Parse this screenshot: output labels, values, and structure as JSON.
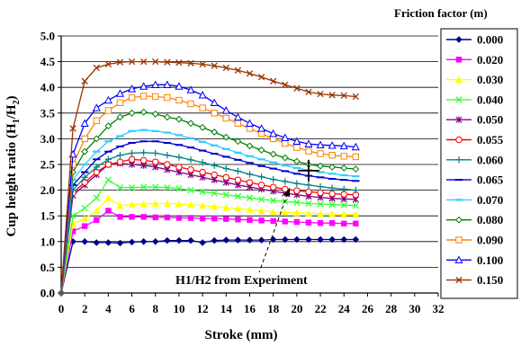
{
  "chart_data": {
    "type": "line",
    "xlabel": "Stroke (mm)",
    "ylabel": "Cup height ratio (H",
    "ylabel_sub1": "1",
    "ylabel_mid": "/H",
    "ylabel_sub2": "2",
    "ylabel_end": ")",
    "xlim": [
      0,
      32
    ],
    "ylim": [
      0,
      5
    ],
    "xticks": [
      "0",
      "2",
      "4",
      "6",
      "8",
      "10",
      "12",
      "14",
      "16",
      "18",
      "20",
      "22",
      "24",
      "26",
      "28",
      "30",
      "32"
    ],
    "yticks": [
      "0.0",
      "0.5",
      "1.0",
      "1.5",
      "2.0",
      "2.5",
      "3.0",
      "3.5",
      "4.0",
      "4.5",
      "5.0"
    ],
    "legend_title": "Friction factor (m)",
    "legend_position": "right",
    "grid": "horizontal",
    "annotation": {
      "text": "H1/H2 from Experiment",
      "point": [
        21,
        2.38
      ]
    },
    "series": [
      {
        "name": "0.000",
        "color": "#00008B",
        "marker": "diamond-filled",
        "x": [
          0,
          1,
          2,
          3,
          4,
          5,
          6,
          7,
          8,
          9,
          10,
          11,
          12,
          13,
          14,
          15,
          16,
          17,
          18,
          19,
          20,
          21,
          22,
          23,
          24,
          25
        ],
        "y": [
          0,
          1.0,
          1.0,
          0.98,
          0.98,
          0.97,
          0.99,
          1.0,
          1.0,
          1.02,
          1.02,
          1.02,
          0.98,
          1.02,
          1.03,
          1.03,
          1.03,
          1.03,
          1.04,
          1.04,
          1.04,
          1.04,
          1.04,
          1.04,
          1.04,
          1.04
        ]
      },
      {
        "name": "0.020",
        "color": "#FF00FF",
        "marker": "square-filled",
        "x": [
          0,
          1,
          2,
          3,
          4,
          5,
          6,
          7,
          8,
          9,
          10,
          11,
          12,
          13,
          14,
          15,
          16,
          17,
          18,
          19,
          20,
          21,
          22,
          23,
          24,
          25
        ],
        "y": [
          0,
          1.2,
          1.3,
          1.42,
          1.6,
          1.48,
          1.48,
          1.48,
          1.47,
          1.47,
          1.46,
          1.46,
          1.45,
          1.45,
          1.44,
          1.43,
          1.42,
          1.41,
          1.4,
          1.39,
          1.38,
          1.37,
          1.36,
          1.36,
          1.35,
          1.35
        ]
      },
      {
        "name": "0.030",
        "color": "#FFFF00",
        "marker": "triangle-filled",
        "x": [
          0,
          1,
          2,
          3,
          4,
          5,
          6,
          7,
          8,
          9,
          10,
          11,
          12,
          13,
          14,
          15,
          16,
          17,
          18,
          19,
          20,
          21,
          22,
          23,
          24,
          25
        ],
        "y": [
          0,
          1.35,
          1.45,
          1.6,
          1.85,
          1.7,
          1.72,
          1.73,
          1.74,
          1.74,
          1.73,
          1.72,
          1.7,
          1.68,
          1.66,
          1.64,
          1.62,
          1.6,
          1.58,
          1.57,
          1.56,
          1.55,
          1.54,
          1.54,
          1.53,
          1.53
        ]
      },
      {
        "name": "0.040",
        "color": "#33FF33",
        "marker": "x",
        "x": [
          0,
          1,
          2,
          3,
          4,
          5,
          6,
          7,
          8,
          9,
          10,
          11,
          12,
          13,
          14,
          15,
          16,
          17,
          18,
          19,
          20,
          21,
          22,
          23,
          24,
          25
        ],
        "y": [
          0,
          1.5,
          1.65,
          1.85,
          2.2,
          2.05,
          2.05,
          2.06,
          2.06,
          2.05,
          2.03,
          2.0,
          1.97,
          1.94,
          1.91,
          1.88,
          1.85,
          1.82,
          1.8,
          1.78,
          1.76,
          1.74,
          1.73,
          1.72,
          1.71,
          1.7
        ]
      },
      {
        "name": "0.050",
        "color": "#800080",
        "marker": "asterisk",
        "x": [
          0,
          1,
          2,
          3,
          4,
          5,
          6,
          7,
          8,
          9,
          10,
          11,
          12,
          13,
          14,
          15,
          16,
          17,
          18,
          19,
          20,
          21,
          22,
          23,
          24,
          25
        ],
        "y": [
          0,
          1.9,
          2.1,
          2.3,
          2.5,
          2.52,
          2.5,
          2.48,
          2.45,
          2.4,
          2.35,
          2.3,
          2.25,
          2.2,
          2.15,
          2.1,
          2.06,
          2.02,
          1.98,
          1.94,
          1.91,
          1.88,
          1.86,
          1.84,
          1.83,
          1.82
        ]
      },
      {
        "name": "0.055",
        "color": "#FF0000",
        "marker": "circle-open",
        "x": [
          0,
          1,
          2,
          3,
          4,
          5,
          6,
          7,
          8,
          9,
          10,
          11,
          12,
          13,
          14,
          15,
          16,
          17,
          18,
          19,
          20,
          21,
          22,
          23,
          24,
          25
        ],
        "y": [
          0,
          1.95,
          2.15,
          2.35,
          2.5,
          2.55,
          2.6,
          2.58,
          2.55,
          2.5,
          2.45,
          2.4,
          2.35,
          2.3,
          2.25,
          2.2,
          2.15,
          2.1,
          2.06,
          2.02,
          1.99,
          1.97,
          1.95,
          1.93,
          1.92,
          1.91
        ]
      },
      {
        "name": "0.060",
        "color": "#008080",
        "marker": "plus",
        "x": [
          0,
          1,
          2,
          3,
          4,
          5,
          6,
          7,
          8,
          9,
          10,
          11,
          12,
          13,
          14,
          15,
          16,
          17,
          18,
          19,
          20,
          21,
          22,
          23,
          24,
          25
        ],
        "y": [
          0,
          2.0,
          2.25,
          2.45,
          2.6,
          2.68,
          2.72,
          2.73,
          2.72,
          2.68,
          2.64,
          2.59,
          2.54,
          2.48,
          2.42,
          2.37,
          2.31,
          2.26,
          2.21,
          2.17,
          2.13,
          2.1,
          2.07,
          2.04,
          2.02,
          2.0
        ]
      },
      {
        "name": "0.065",
        "color": "#0000CC",
        "marker": "dash",
        "x": [
          0,
          1,
          2,
          3,
          4,
          5,
          6,
          7,
          8,
          9,
          10,
          11,
          12,
          13,
          14,
          15,
          16,
          17,
          18,
          19,
          20,
          21,
          22,
          23,
          24,
          25
        ],
        "y": [
          0,
          2.1,
          2.35,
          2.6,
          2.75,
          2.85,
          2.92,
          2.95,
          2.95,
          2.92,
          2.88,
          2.83,
          2.77,
          2.71,
          2.65,
          2.59,
          2.53,
          2.47,
          2.42,
          2.37,
          2.32,
          2.28,
          2.25,
          2.22,
          2.2,
          2.18
        ]
      },
      {
        "name": "0.070",
        "color": "#33CCFF",
        "marker": "bar",
        "x": [
          0,
          1,
          2,
          3,
          4,
          5,
          6,
          7,
          8,
          9,
          10,
          11,
          12,
          13,
          14,
          15,
          16,
          17,
          18,
          19,
          20,
          21,
          22,
          23,
          24,
          25
        ],
        "y": [
          0,
          2.2,
          2.5,
          2.75,
          2.95,
          3.05,
          3.15,
          3.17,
          3.15,
          3.12,
          3.07,
          3.01,
          2.94,
          2.87,
          2.8,
          2.73,
          2.66,
          2.6,
          2.54,
          2.48,
          2.43,
          2.39,
          2.35,
          2.32,
          2.29,
          2.27
        ]
      },
      {
        "name": "0.080",
        "color": "#008000",
        "marker": "diamond-open",
        "x": [
          0,
          1,
          2,
          3,
          4,
          5,
          6,
          7,
          8,
          9,
          10,
          11,
          12,
          13,
          14,
          15,
          16,
          17,
          18,
          19,
          20,
          21,
          22,
          23,
          24,
          25
        ],
        "y": [
          0,
          2.35,
          2.75,
          3.0,
          3.25,
          3.42,
          3.5,
          3.52,
          3.48,
          3.42,
          3.38,
          3.3,
          3.22,
          3.13,
          3.03,
          2.95,
          2.86,
          2.78,
          2.7,
          2.63,
          2.56,
          2.5,
          2.47,
          2.45,
          2.43,
          2.41
        ]
      },
      {
        "name": "0.090",
        "color": "#FF8000",
        "marker": "square-open",
        "x": [
          0,
          1,
          2,
          3,
          4,
          5,
          6,
          7,
          8,
          9,
          10,
          11,
          12,
          13,
          14,
          15,
          16,
          17,
          18,
          19,
          20,
          21,
          22,
          23,
          24,
          25
        ],
        "y": [
          0,
          2.5,
          3.0,
          3.35,
          3.55,
          3.7,
          3.8,
          3.83,
          3.82,
          3.8,
          3.75,
          3.68,
          3.6,
          3.5,
          3.4,
          3.3,
          3.2,
          3.1,
          3.0,
          2.91,
          2.83,
          2.76,
          2.71,
          2.68,
          2.66,
          2.65
        ]
      },
      {
        "name": "0.100",
        "color": "#0000FF",
        "marker": "triangle-open",
        "x": [
          0,
          1,
          2,
          3,
          4,
          5,
          6,
          7,
          8,
          9,
          10,
          11,
          12,
          13,
          14,
          15,
          16,
          17,
          18,
          19,
          20,
          21,
          22,
          23,
          24,
          25
        ],
        "y": [
          0,
          2.7,
          3.3,
          3.6,
          3.75,
          3.88,
          3.97,
          4.02,
          4.05,
          4.05,
          4.02,
          3.95,
          3.85,
          3.7,
          3.55,
          3.42,
          3.3,
          3.2,
          3.1,
          3.02,
          2.95,
          2.9,
          2.88,
          2.87,
          2.86,
          2.84
        ]
      },
      {
        "name": "0.150",
        "color": "#993300",
        "marker": "x",
        "x": [
          0,
          1,
          2,
          3,
          4,
          5,
          6,
          7,
          8,
          9,
          10,
          11,
          12,
          13,
          14,
          15,
          16,
          17,
          18,
          19,
          20,
          21,
          22,
          23,
          24,
          25
        ],
        "y": [
          0,
          3.2,
          4.12,
          4.38,
          4.45,
          4.49,
          4.5,
          4.5,
          4.5,
          4.49,
          4.48,
          4.47,
          4.45,
          4.42,
          4.38,
          4.33,
          4.27,
          4.2,
          4.12,
          4.05,
          3.98,
          3.91,
          3.87,
          3.85,
          3.84,
          3.82
        ]
      }
    ]
  }
}
